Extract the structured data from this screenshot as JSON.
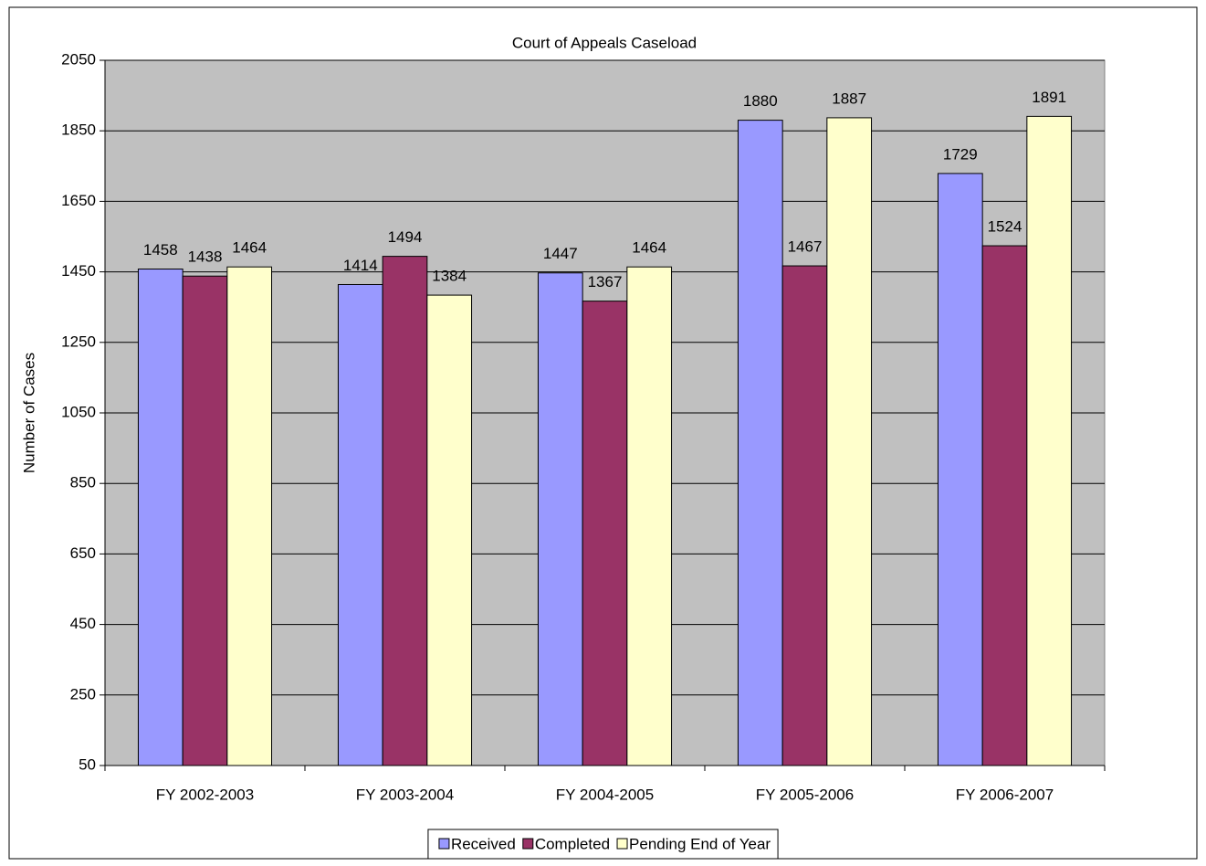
{
  "chart_data": {
    "type": "bar",
    "title": "Court of Appeals Caseload",
    "y_label": "Number of Cases",
    "categories": [
      "FY 2002-2003",
      "FY 2003-2004",
      "FY 2004-2005",
      "FY 2005-2006",
      "FY 2006-2007"
    ],
    "series": [
      {
        "name": "Received",
        "color": "#9999ff",
        "values": [
          1458,
          1414,
          1447,
          1880,
          1729
        ]
      },
      {
        "name": "Completed",
        "color": "#993366",
        "values": [
          1438,
          1494,
          1367,
          1467,
          1524
        ]
      },
      {
        "name": "Pending End of Year",
        "color": "#ffffcc",
        "values": [
          1464,
          1384,
          1464,
          1887,
          1891
        ]
      }
    ],
    "ylim": [
      50,
      2050
    ],
    "yticks": [
      50,
      250,
      450,
      650,
      850,
      1050,
      1250,
      1450,
      1650,
      1850,
      2050
    ],
    "grid": true,
    "legend": "bottom",
    "plot_background": "#c0c0c0"
  }
}
